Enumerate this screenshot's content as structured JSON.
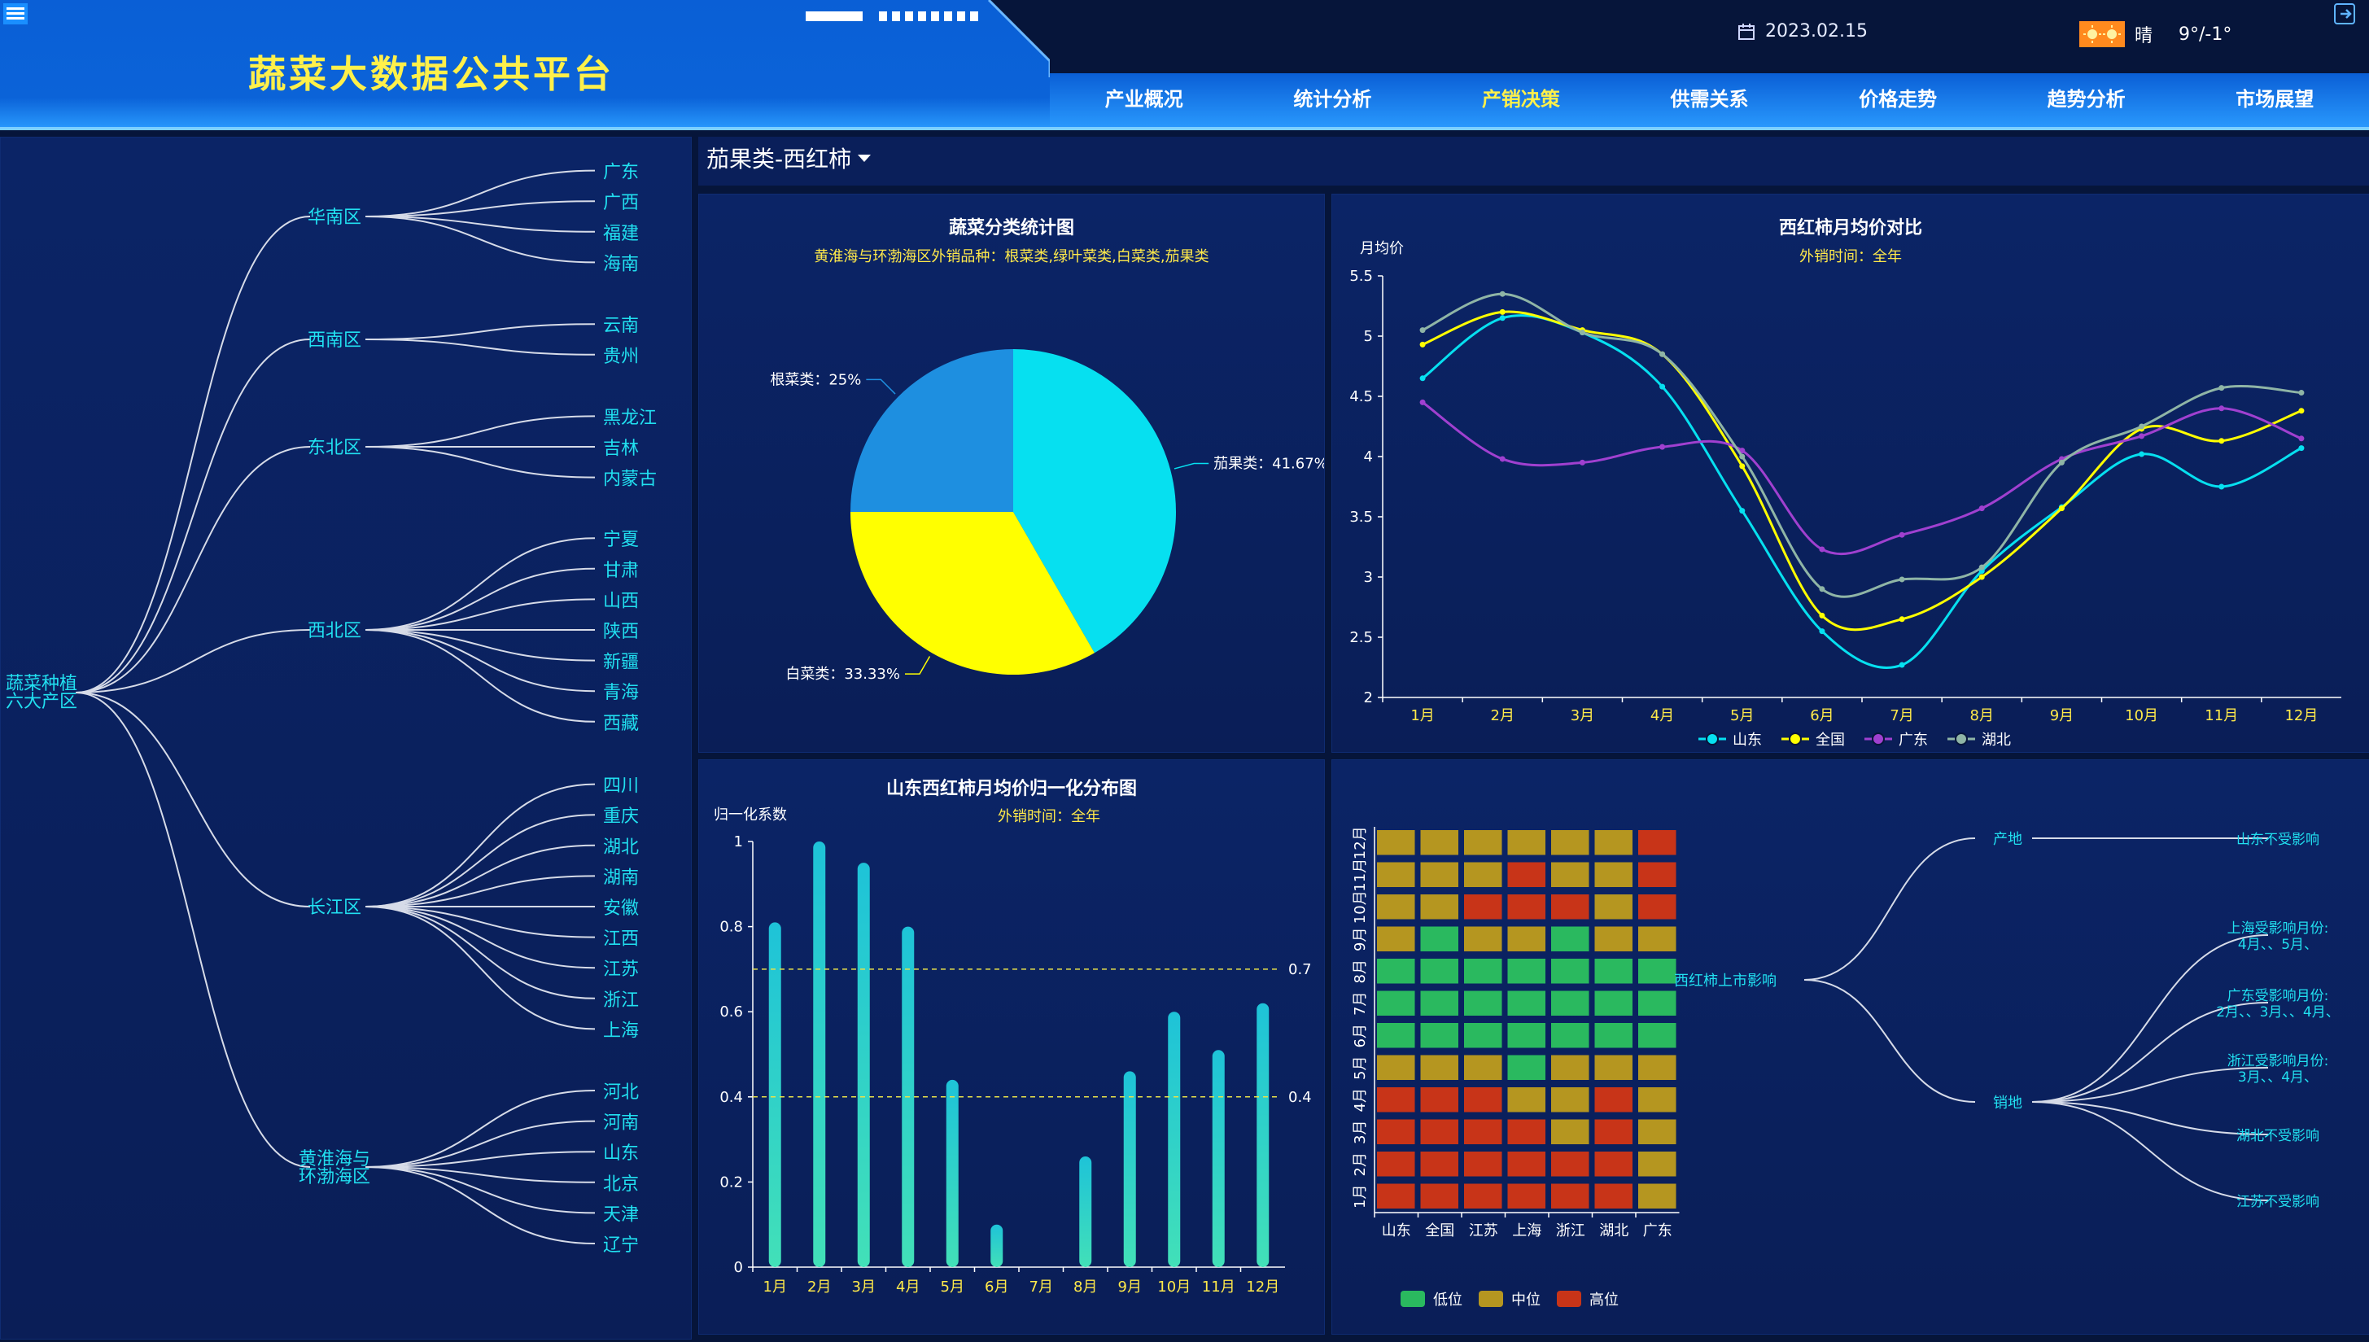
{
  "header": {
    "title": "蔬菜大数据公共平台",
    "date": "2023.02.15",
    "weather": "晴",
    "temperature": "9°/-1°",
    "menu_icon": "menu-icon",
    "exit_icon": "exit-icon",
    "calendar_icon": "calendar-icon",
    "sun_icon": "sun-icon"
  },
  "nav": {
    "items": [
      {
        "label": "产业概况",
        "active": false
      },
      {
        "label": "统计分析",
        "active": false
      },
      {
        "label": "产销决策",
        "active": true
      },
      {
        "label": "供需关系",
        "active": false
      },
      {
        "label": "价格走势",
        "active": false
      },
      {
        "label": "趋势分析",
        "active": false
      },
      {
        "label": "市场展望",
        "active": false
      }
    ]
  },
  "selector": {
    "label": "茄果类-西红柿"
  },
  "tree": {
    "root": [
      "蔬菜种植",
      "六大产区"
    ],
    "regions": [
      {
        "name": [
          "华南区"
        ],
        "provinces": [
          "广东",
          "广西",
          "福建",
          "海南"
        ]
      },
      {
        "name": [
          "西南区"
        ],
        "provinces": [
          "云南",
          "贵州"
        ]
      },
      {
        "name": [
          "东北区"
        ],
        "provinces": [
          "黑龙江",
          "吉林",
          "内蒙古"
        ]
      },
      {
        "name": [
          "西北区"
        ],
        "provinces": [
          "宁夏",
          "甘肃",
          "山西",
          "陕西",
          "新疆",
          "青海",
          "西藏"
        ]
      },
      {
        "name": [
          "长江区"
        ],
        "provinces": [
          "四川",
          "重庆",
          "湖北",
          "湖南",
          "安徽",
          "江西",
          "江苏",
          "浙江",
          "上海"
        ]
      },
      {
        "name": [
          "黄淮海与",
          "环渤海区"
        ],
        "provinces": [
          "河北",
          "河南",
          "山东",
          "北京",
          "天津",
          "辽宁"
        ]
      }
    ]
  },
  "colors": {
    "cyan": "#06e0f0",
    "yellow": "#ffff00",
    "blue": "#1e8fe0",
    "purple": "#a040d0",
    "grey_green": "#8fb5a6",
    "low": "#2ab95f",
    "mid": "#b59620",
    "high": "#c83418",
    "title_yellow": "#fff04a",
    "tree_text": "#21e0f0"
  },
  "chart_data": [
    {
      "type": "pie",
      "title": "蔬菜分类统计图",
      "subtitle": "黄淮海与环渤海区外销品种：根菜类,绿叶菜类,白菜类,茄果类",
      "slices": [
        {
          "label": "茄果类",
          "value": 41.67,
          "display": "茄果类：41.67%"
        },
        {
          "label": "白菜类",
          "value": 33.33,
          "display": "白菜类：33.33%"
        },
        {
          "label": "根菜类",
          "value": 25,
          "display": "根菜类：25%"
        }
      ]
    },
    {
      "type": "line",
      "title": "西红柿月均价对比",
      "subtitle": "外销时间：全年",
      "ylabel": "月均价",
      "ylim": [
        2,
        5.5
      ],
      "yticks": [
        "2",
        "2.5",
        "3",
        "3.5",
        "4",
        "4.5",
        "5",
        "5.5"
      ],
      "categories": [
        "1月",
        "2月",
        "3月",
        "4月",
        "5月",
        "6月",
        "7月",
        "8月",
        "9月",
        "10月",
        "11月",
        "12月"
      ],
      "series": [
        {
          "name": "山东",
          "values": [
            4.65,
            5.15,
            5.03,
            4.58,
            3.55,
            2.55,
            2.27,
            3.05,
            3.58,
            4.02,
            3.75,
            4.07
          ]
        },
        {
          "name": "全国",
          "values": [
            4.93,
            5.2,
            5.05,
            4.85,
            3.92,
            2.68,
            2.65,
            3.0,
            3.57,
            4.23,
            4.13,
            4.38
          ]
        },
        {
          "name": "广东",
          "values": [
            4.45,
            3.98,
            3.95,
            4.08,
            4.05,
            3.23,
            3.35,
            3.57,
            3.98,
            4.17,
            4.4,
            4.15
          ]
        },
        {
          "name": "湖北",
          "values": [
            5.05,
            5.35,
            5.03,
            4.85,
            4.0,
            2.9,
            2.98,
            3.08,
            3.95,
            4.25,
            4.57,
            4.53
          ]
        }
      ],
      "legend_position": "bottom"
    },
    {
      "type": "bar",
      "title": "山东西红柿月均价归一化分布图",
      "subtitle": "外销时间：全年",
      "ylabel": "归一化系数",
      "ylim": [
        0,
        1
      ],
      "yticks": [
        "0",
        "0.2",
        "0.4",
        "0.6",
        "0.8",
        "1"
      ],
      "categories": [
        "1月",
        "2月",
        "3月",
        "4月",
        "5月",
        "6月",
        "7月",
        "8月",
        "9月",
        "10月",
        "11月",
        "12月"
      ],
      "values": [
        0.81,
        1.0,
        0.95,
        0.8,
        0.44,
        0.1,
        0.0,
        0.26,
        0.46,
        0.6,
        0.51,
        0.62
      ],
      "markLines": [
        {
          "value": 0.7,
          "label": "0.7"
        },
        {
          "value": 0.4,
          "label": "0.4"
        }
      ]
    },
    {
      "type": "heatmap",
      "x_categories": [
        "山东",
        "全国",
        "江苏",
        "上海",
        "浙江",
        "湖北",
        "广东"
      ],
      "y_categories": [
        "1月",
        "2月",
        "3月",
        "4月",
        "5月",
        "6月",
        "7月",
        "8月",
        "9月",
        "10月",
        "11月",
        "12月"
      ],
      "levels": [
        "低位",
        "中位",
        "高位"
      ],
      "grid": [
        [
          "高位",
          "高位",
          "高位",
          "高位",
          "高位",
          "高位",
          "中位"
        ],
        [
          "高位",
          "高位",
          "高位",
          "高位",
          "高位",
          "高位",
          "中位"
        ],
        [
          "高位",
          "高位",
          "高位",
          "高位",
          "中位",
          "高位",
          "中位"
        ],
        [
          "高位",
          "高位",
          "高位",
          "中位",
          "中位",
          "高位",
          "中位"
        ],
        [
          "中位",
          "中位",
          "中位",
          "低位",
          "中位",
          "中位",
          "中位"
        ],
        [
          "低位",
          "低位",
          "低位",
          "低位",
          "低位",
          "低位",
          "低位"
        ],
        [
          "低位",
          "低位",
          "低位",
          "低位",
          "低位",
          "低位",
          "低位"
        ],
        [
          "低位",
          "低位",
          "低位",
          "低位",
          "低位",
          "低位",
          "低位"
        ],
        [
          "中位",
          "低位",
          "中位",
          "中位",
          "低位",
          "中位",
          "中位"
        ],
        [
          "中位",
          "中位",
          "高位",
          "高位",
          "高位",
          "中位",
          "高位"
        ],
        [
          "中位",
          "中位",
          "中位",
          "高位",
          "中位",
          "中位",
          "高位"
        ],
        [
          "中位",
          "中位",
          "中位",
          "中位",
          "中位",
          "中位",
          "高位"
        ]
      ]
    }
  ],
  "impact_tree": {
    "root": "西红柿上市影响",
    "branches": [
      {
        "name": "产地",
        "leaves": [
          [
            "山东不受影响"
          ]
        ]
      },
      {
        "name": "销地",
        "leaves": [
          [
            "上海受影响月份:",
            "4月、、5月、"
          ],
          [
            "广东受影响月份:",
            "2月、、3月、、4月、"
          ],
          [
            "浙江受影响月份:",
            "3月、、4月、"
          ],
          [
            "湖北不受影响"
          ],
          [
            "江苏不受影响"
          ]
        ]
      }
    ]
  }
}
